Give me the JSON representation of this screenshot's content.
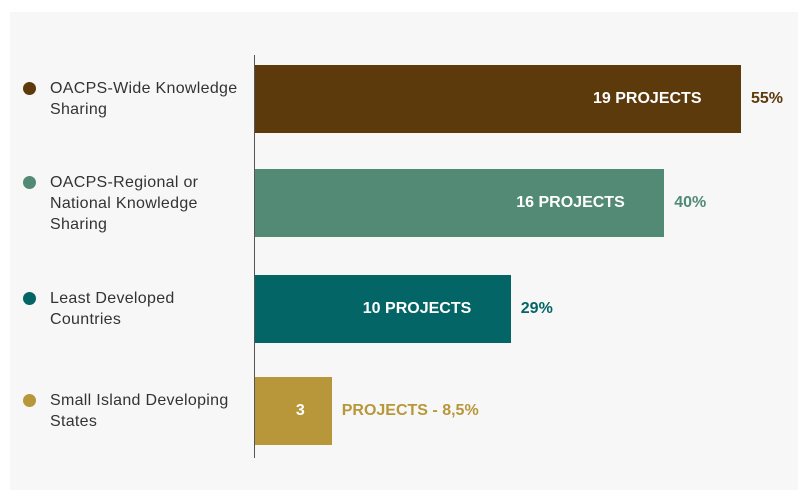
{
  "chart_data": {
    "type": "bar",
    "orientation": "horizontal",
    "categories": [
      "OACPS-Wide Knowledge Sharing",
      "OACPS-Regional or National Knowledge Sharing",
      "Least Developed Countries",
      "Small Island Developing States"
    ],
    "colors": [
      "#5c3a0b",
      "#528a76",
      "#046566",
      "#b8973a"
    ],
    "values": [
      19,
      16,
      10,
      3
    ],
    "value_labels": [
      "19 PROJECTS",
      "16 PROJECTS",
      "10 PROJECTS",
      "3"
    ],
    "shares": [
      55,
      40,
      29,
      8.5
    ],
    "share_labels": [
      "55%",
      "40%",
      "29%",
      "PROJECTS - 8,5%"
    ],
    "xlim": [
      0,
      19
    ]
  }
}
